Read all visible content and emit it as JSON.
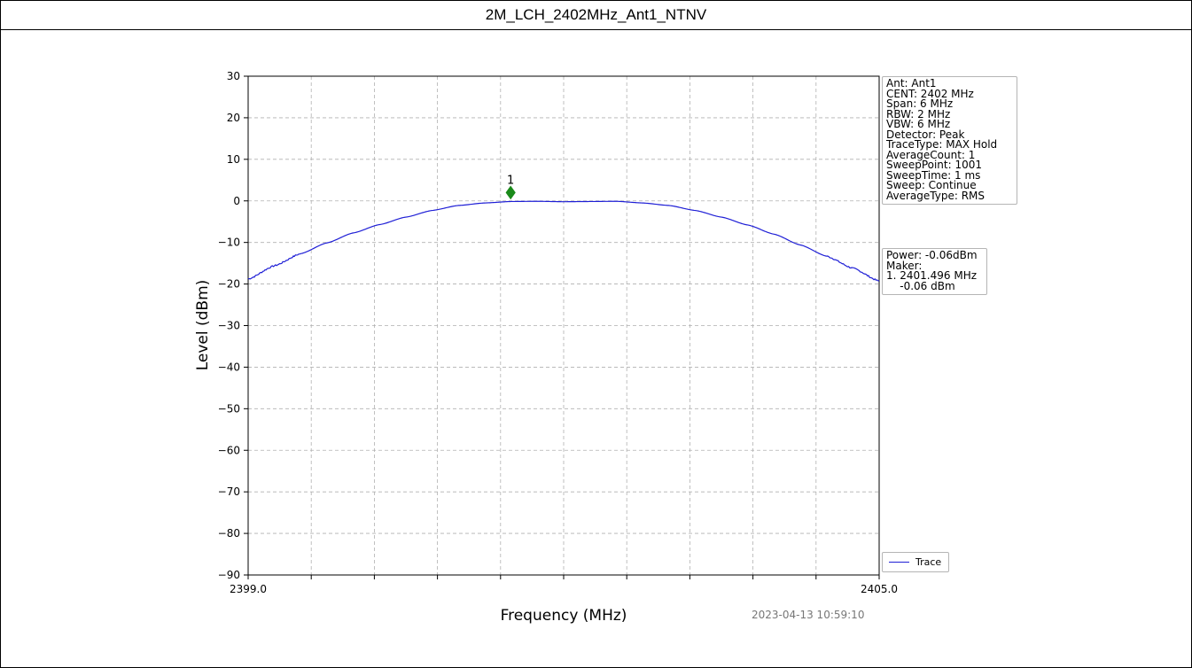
{
  "page_title": "2M_LCH_2402MHz_Ant1_NTNV",
  "chart_data": {
    "type": "line",
    "xlabel": "Frequency (MHz)",
    "ylabel": "Level (dBm)",
    "xlim": [
      2399.0,
      2405.0
    ],
    "ylim": [
      -90,
      30
    ],
    "xtick_labels": [
      "2399.0",
      "2405.0"
    ],
    "yticks": [
      30,
      20,
      10,
      0,
      -10,
      -20,
      -30,
      -40,
      -50,
      -60,
      -70,
      -80,
      -90
    ],
    "ytick_labels": [
      "30",
      "20",
      "10",
      "0",
      "−10",
      "−20",
      "−30",
      "−40",
      "−50",
      "−60",
      "−70",
      "−80",
      "−90"
    ],
    "grid": true,
    "series": [
      {
        "name": "Trace",
        "color": "#1f1fd6",
        "x": [
          2399.0,
          2399.25,
          2399.5,
          2399.75,
          2400.0,
          2400.25,
          2400.5,
          2400.75,
          2401.0,
          2401.25,
          2401.5,
          2401.75,
          2402.0,
          2402.25,
          2402.5,
          2402.75,
          2403.0,
          2403.25,
          2403.5,
          2403.75,
          2404.0,
          2404.25,
          2404.5,
          2404.75,
          2405.0
        ],
        "y": [
          -18.8,
          -15.6,
          -12.7,
          -10.1,
          -7.7,
          -5.7,
          -3.9,
          -2.3,
          -1.1,
          -0.5,
          -0.15,
          -0.1,
          -0.2,
          -0.15,
          -0.1,
          -0.5,
          -1.1,
          -2.3,
          -3.9,
          -5.8,
          -8.0,
          -10.6,
          -13.3,
          -16.2,
          -19.3
        ]
      }
    ],
    "marker": {
      "label": "1",
      "x": 2401.496,
      "y": 2.0,
      "color": "#1a8a1a"
    },
    "settings_lines": [
      "Ant: Ant1",
      "CENT: 2402 MHz",
      "Span: 6 MHz",
      "RBW: 2 MHz",
      "VBW: 6 MHz",
      "Detector: Peak",
      "TraceType: MAX Hold",
      "AverageCount: 1",
      "SweepPoint: 1001",
      "SweepTime: 1 ms",
      "Sweep: Continue",
      "AverageType: RMS"
    ],
    "result_lines": [
      "Power: -0.06dBm",
      "Maker:",
      "1. 2401.496 MHz",
      "    -0.06 dBm"
    ],
    "legend": "Trace",
    "legend_placement": "bottom-right outside",
    "timestamp": "2023-04-13 10:59:10"
  }
}
